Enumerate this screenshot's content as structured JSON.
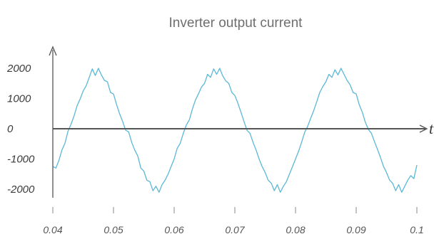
{
  "chart_data": {
    "type": "line",
    "title": "Inverter output current",
    "xlabel": "t",
    "ylabel": "",
    "xlim": [
      0.04,
      0.1
    ],
    "ylim": [
      -2000,
      2000
    ],
    "y_ticks": [
      "2000",
      "1000",
      "0",
      "-1000",
      "-2000"
    ],
    "x_ticks": [
      "0.04",
      "0.05",
      "0.06",
      "0.07",
      "0.08",
      "0.09",
      "0.1"
    ],
    "grid": false,
    "series": [
      {
        "color": "#5bb8d6",
        "x": [
          0.04,
          0.0405,
          0.041,
          0.0415,
          0.042,
          0.0425,
          0.043,
          0.0435,
          0.044,
          0.0445,
          0.045,
          0.0455,
          0.046,
          0.0465,
          0.047,
          0.0475,
          0.048,
          0.0485,
          0.049,
          0.0495,
          0.05,
          0.0505,
          0.051,
          0.0515,
          0.052,
          0.0525,
          0.053,
          0.0535,
          0.054,
          0.0545,
          0.055,
          0.0555,
          0.056,
          0.0565,
          0.057,
          0.0575,
          0.058,
          0.0585,
          0.059,
          0.0595,
          0.06,
          0.0605,
          0.061,
          0.0615,
          0.062,
          0.0625,
          0.063,
          0.0635,
          0.064,
          0.0645,
          0.065,
          0.0655,
          0.066,
          0.0665,
          0.067,
          0.0675,
          0.068,
          0.0685,
          0.069,
          0.0695,
          0.07,
          0.0705,
          0.071,
          0.0715,
          0.072,
          0.0725,
          0.073,
          0.0735,
          0.074,
          0.0745,
          0.075,
          0.0755,
          0.076,
          0.0765,
          0.077,
          0.0775,
          0.078,
          0.0785,
          0.079,
          0.0795,
          0.08,
          0.0805,
          0.081,
          0.0815,
          0.082,
          0.0825,
          0.083,
          0.0835,
          0.084,
          0.0845,
          0.085,
          0.0855,
          0.086,
          0.0865,
          0.087,
          0.0875,
          0.088,
          0.0885,
          0.089,
          0.0895,
          0.09,
          0.0905,
          0.091,
          0.0915,
          0.092,
          0.0925,
          0.093,
          0.0935,
          0.094,
          0.0945,
          0.095,
          0.0955,
          0.096,
          0.0965,
          0.097,
          0.0975,
          0.098,
          0.0985,
          0.099,
          0.0995,
          0.1
        ],
        "y": [
          -1250,
          -1300,
          -1050,
          -700,
          -480,
          -80,
          150,
          420,
          760,
          980,
          1250,
          1420,
          1700,
          1980,
          1760,
          2000,
          1780,
          1600,
          1550,
          1200,
          1150,
          800,
          500,
          250,
          -50,
          -100,
          -450,
          -700,
          -900,
          -1300,
          -1400,
          -1700,
          -1750,
          -2050,
          -1900,
          -2100,
          -1850,
          -1700,
          -1500,
          -1250,
          -1000,
          -650,
          -480,
          -150,
          120,
          300,
          650,
          950,
          1150,
          1380,
          1500,
          1800,
          1700,
          1980,
          1800,
          2000,
          1750,
          1580,
          1500,
          1200,
          1100,
          850,
          550,
          250,
          -50,
          -150,
          -450,
          -700,
          -1000,
          -1250,
          -1450,
          -1700,
          -1800,
          -2050,
          -1850,
          -2100,
          -1900,
          -1750,
          -1500,
          -1250,
          -1000,
          -750,
          -450,
          -120,
          80,
          350,
          600,
          900,
          1200,
          1400,
          1550,
          1800,
          1700,
          1950,
          1780,
          2000,
          1800,
          1600,
          1450,
          1200,
          1150,
          800,
          550,
          220,
          -20,
          -150,
          -420,
          -680,
          -950,
          -1250,
          -1450,
          -1700,
          -1800,
          -2050,
          -1850,
          -2100,
          -1900,
          -1700,
          -1550,
          -1650,
          -1200
        ]
      }
    ]
  }
}
